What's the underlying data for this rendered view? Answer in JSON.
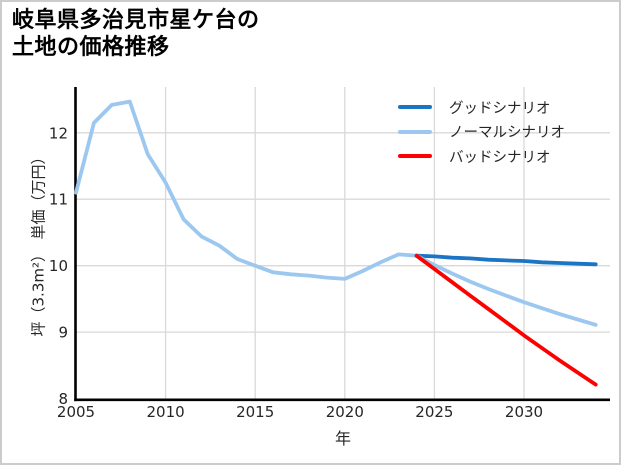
{
  "page": {
    "background": "#ffffff",
    "border_color": "#cccccc"
  },
  "header": {
    "title": "岐阜県多治見市星ケ台の\n土地の価格推移"
  },
  "chart_data": {
    "type": "line",
    "title": "岐阜県多治見市星ケ台の 土地の価格推移",
    "xlabel": "年",
    "ylabel": "坪（3.3m²）　単価（万円）",
    "xlim": [
      2005,
      2034.8
    ],
    "ylim": [
      8,
      12.69
    ],
    "x_ticks": [
      2005,
      2010,
      2015,
      2020,
      2025,
      2030
    ],
    "y_ticks": [
      8,
      9,
      10,
      11,
      12
    ],
    "grid": true,
    "grid_color": "#d9d9d9",
    "spine_color": "#000000",
    "legend_position": "upper right",
    "history": {
      "key": "history",
      "color": "#9cc8f0",
      "x": [
        2005,
        2006,
        2007,
        2008,
        2009,
        2010,
        2011,
        2012,
        2013,
        2014,
        2015,
        2016,
        2017,
        2018,
        2019,
        2020,
        2021,
        2022,
        2023,
        2024
      ],
      "y": [
        11.1,
        12.15,
        12.42,
        12.47,
        11.68,
        11.25,
        10.7,
        10.44,
        10.3,
        10.1,
        10.0,
        9.9,
        9.87,
        9.85,
        9.82,
        9.8,
        9.92,
        10.05,
        10.17,
        10.15
      ]
    },
    "series": [
      {
        "key": "good",
        "name": "グッドシナリオ",
        "color": "#1b75c4",
        "x": [
          2024,
          2025,
          2026,
          2027,
          2028,
          2029,
          2030,
          2031,
          2032,
          2033,
          2034
        ],
        "y": [
          10.15,
          10.14,
          10.12,
          10.11,
          10.09,
          10.08,
          10.07,
          10.05,
          10.04,
          10.03,
          10.02
        ]
      },
      {
        "key": "normal",
        "name": "ノーマルシナリオ",
        "color": "#9cc8f0",
        "x": [
          2024,
          2025,
          2026,
          2027,
          2028,
          2029,
          2030,
          2031,
          2032,
          2033,
          2034
        ],
        "y": [
          10.15,
          10.01,
          9.88,
          9.76,
          9.65,
          9.55,
          9.45,
          9.36,
          9.27,
          9.19,
          9.11
        ]
      },
      {
        "key": "bad",
        "name": "バッドシナリオ",
        "color": "#fe0000",
        "x": [
          2024,
          2025,
          2026,
          2027,
          2028,
          2029,
          2030,
          2031,
          2032,
          2033,
          2034
        ],
        "y": [
          10.15,
          9.95,
          9.75,
          9.55,
          9.35,
          9.15,
          8.95,
          8.76,
          8.57,
          8.39,
          8.21
        ]
      }
    ]
  }
}
